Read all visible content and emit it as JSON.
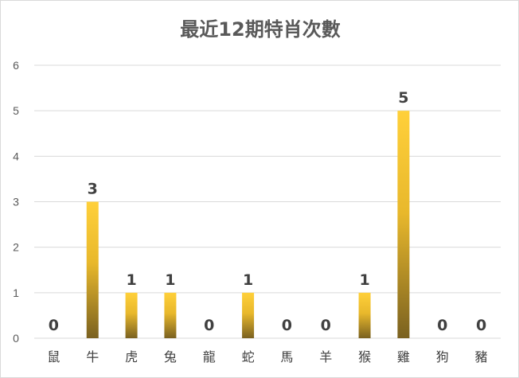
{
  "chart_data": {
    "type": "bar",
    "title": "最近12期特肖次數",
    "categories": [
      "鼠",
      "牛",
      "虎",
      "兔",
      "龍",
      "蛇",
      "馬",
      "羊",
      "猴",
      "雞",
      "狗",
      "豬"
    ],
    "values": [
      0,
      3,
      1,
      1,
      0,
      1,
      0,
      0,
      1,
      5,
      0,
      0
    ],
    "ylim": [
      0,
      6
    ],
    "yticks": [
      "0",
      "1",
      "2",
      "3",
      "4",
      "5",
      "6"
    ],
    "grid": true,
    "legend": "none",
    "data_labels": true,
    "colors": {
      "bar_top": "#FFD03A",
      "bar_bottom": "#7A6120",
      "grid": "#D9D9D9",
      "text": "#595959"
    }
  }
}
